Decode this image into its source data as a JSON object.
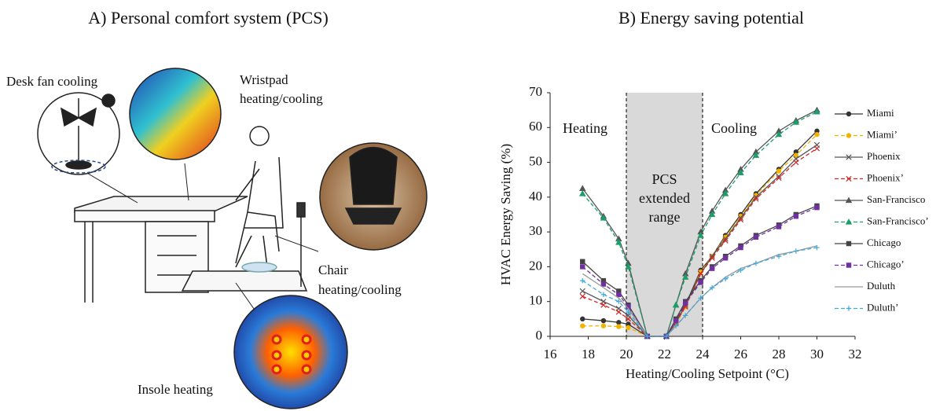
{
  "panel_a": {
    "title": "A) Personal comfort system (PCS)",
    "desk_fan": "Desk fan cooling",
    "wristpad": [
      "Wristpad",
      "heating/cooling"
    ],
    "chair": [
      "Chair",
      "heating/cooling"
    ],
    "insole": "Insole heating"
  },
  "chart_data": {
    "type": "line",
    "title": "B) Energy saving potential",
    "x_label": "Heating/Cooling  Setpoint (°C)",
    "y_label": "HVAC Energy  Saving (%)",
    "xlim": [
      16,
      32
    ],
    "xticks": [
      16,
      18,
      20,
      22,
      24,
      26,
      28,
      30,
      32
    ],
    "ylim": [
      0,
      70
    ],
    "yticks": [
      0,
      10,
      20,
      30,
      40,
      50,
      60,
      70
    ],
    "shaded_range": [
      20,
      24
    ],
    "annotations": {
      "heating": "Heating",
      "cooling": "Cooling",
      "pcs": [
        "PCS",
        "extended",
        "range"
      ]
    },
    "x": [
      17.7,
      18.8,
      19.6,
      20.1,
      21.1,
      22.1,
      22.6,
      23.1,
      23.9,
      24.5,
      25.2,
      26.0,
      26.8,
      28.0,
      28.9,
      30.0
    ],
    "series": [
      {
        "name": "Miami",
        "color": "#333333",
        "dash": false,
        "marker": "circle",
        "values": [
          5,
          4.5,
          4,
          3.5,
          0,
          0,
          4,
          9,
          19,
          23,
          29,
          35,
          41,
          48,
          53,
          59
        ]
      },
      {
        "name": "Miami’",
        "color": "#f0b400",
        "dash": true,
        "marker": "circle",
        "values": [
          3,
          3,
          2.8,
          2.5,
          0,
          0,
          3.5,
          8.5,
          18.5,
          23,
          28.5,
          34.5,
          40.5,
          47.5,
          52,
          58
        ]
      },
      {
        "name": "Phoenix",
        "color": "#555555",
        "dash": false,
        "marker": "cross",
        "values": [
          13,
          10,
          8,
          6,
          0,
          0,
          4,
          9,
          18,
          23,
          28,
          34,
          40,
          46,
          51,
          55
        ]
      },
      {
        "name": "Phoenix’",
        "color": "#d62728",
        "dash": true,
        "marker": "cross",
        "values": [
          11.5,
          9,
          7,
          5,
          0,
          0,
          3.8,
          8.5,
          18,
          22.5,
          27.5,
          33.5,
          39.5,
          45.5,
          50,
          54
        ]
      },
      {
        "name": "San-Francisco",
        "color": "#555555",
        "dash": false,
        "marker": "triangle",
        "values": [
          42.5,
          34.5,
          28,
          21,
          0,
          0,
          9,
          18,
          30,
          36,
          42,
          48,
          53,
          59,
          62,
          65
        ]
      },
      {
        "name": "San-Francisco’",
        "color": "#1a9e6a",
        "dash": true,
        "marker": "triangle",
        "values": [
          41,
          34,
          27,
          20,
          0,
          0,
          9,
          17,
          29,
          35,
          41,
          47,
          52,
          58,
          61.5,
          64.5
        ]
      },
      {
        "name": "Chicago",
        "color": "#444444",
        "dash": false,
        "marker": "square",
        "values": [
          21.5,
          16,
          13,
          9,
          0,
          0,
          5,
          10,
          16,
          20,
          23,
          26,
          29,
          32,
          35,
          37.5
        ]
      },
      {
        "name": "Chicago’",
        "color": "#7030a0",
        "dash": true,
        "marker": "square",
        "values": [
          20,
          15,
          12,
          8.5,
          0,
          0,
          4.5,
          9.5,
          15.5,
          19.5,
          22.5,
          25.5,
          28.5,
          31.5,
          34.5,
          37
        ]
      },
      {
        "name": "Duluth",
        "color": "#999999",
        "dash": false,
        "marker": "none",
        "values": [
          18,
          14,
          11,
          8,
          0,
          0,
          3,
          6,
          11,
          14,
          17,
          19.5,
          21,
          23.5,
          24.5,
          26
        ]
      },
      {
        "name": "Duluth’",
        "color": "#3fa9d8",
        "dash": true,
        "marker": "plus",
        "values": [
          16,
          12,
          10,
          7,
          0,
          0,
          3,
          6,
          11,
          14,
          16.5,
          19,
          21,
          23,
          24.5,
          25.5
        ]
      }
    ]
  }
}
